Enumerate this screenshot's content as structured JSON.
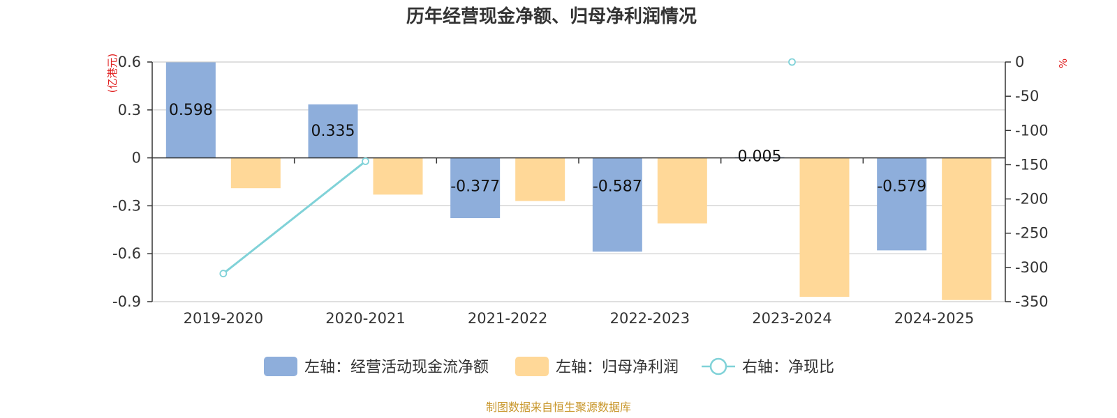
{
  "chart_data": {
    "type": "bar",
    "title": "历年经营现金净额、归母净利润情况",
    "categories": [
      "2019-2020",
      "2020-2021",
      "2021-2022",
      "2022-2023",
      "2023-2024",
      "2024-2025"
    ],
    "left_axis": {
      "unit": "(亿港元)",
      "ylim": [
        -0.9,
        0.6
      ],
      "ticks": [
        "0.6",
        "0.3",
        "0",
        "-0.3",
        "-0.6",
        "-0.9"
      ],
      "tick_values": [
        0.6,
        0.3,
        0,
        -0.3,
        -0.6,
        -0.9
      ]
    },
    "right_axis": {
      "unit": "%",
      "ylim": [
        -350,
        0
      ],
      "ticks": [
        "0",
        "-50",
        "-100",
        "-150",
        "-200",
        "-250",
        "-300",
        "-350"
      ],
      "tick_values": [
        0,
        -50,
        -100,
        -150,
        -200,
        -250,
        -300,
        -350
      ]
    },
    "series": [
      {
        "name": "左轴：经营活动现金流净额",
        "axis": "left",
        "kind": "bar",
        "color": "#8eaedb",
        "values": [
          0.598,
          0.335,
          -0.377,
          -0.587,
          0.005,
          -0.579
        ],
        "labels": [
          "0.598",
          "0.335",
          "-0.377",
          "-0.587",
          "0.005",
          "-0.579"
        ]
      },
      {
        "name": "左轴：归母净利润",
        "axis": "left",
        "kind": "bar",
        "color": "#ffd898",
        "values": [
          -0.19,
          -0.23,
          -0.27,
          -0.41,
          -0.87,
          -0.89
        ]
      },
      {
        "name": "右轴：净现比",
        "axis": "right",
        "kind": "line",
        "color": "#80d2d8",
        "values": [
          -309,
          -145,
          null,
          null,
          0,
          null
        ]
      }
    ],
    "grid": true,
    "legend_position": "bottom"
  },
  "source_note": "制图数据来自恒生聚源数据库"
}
